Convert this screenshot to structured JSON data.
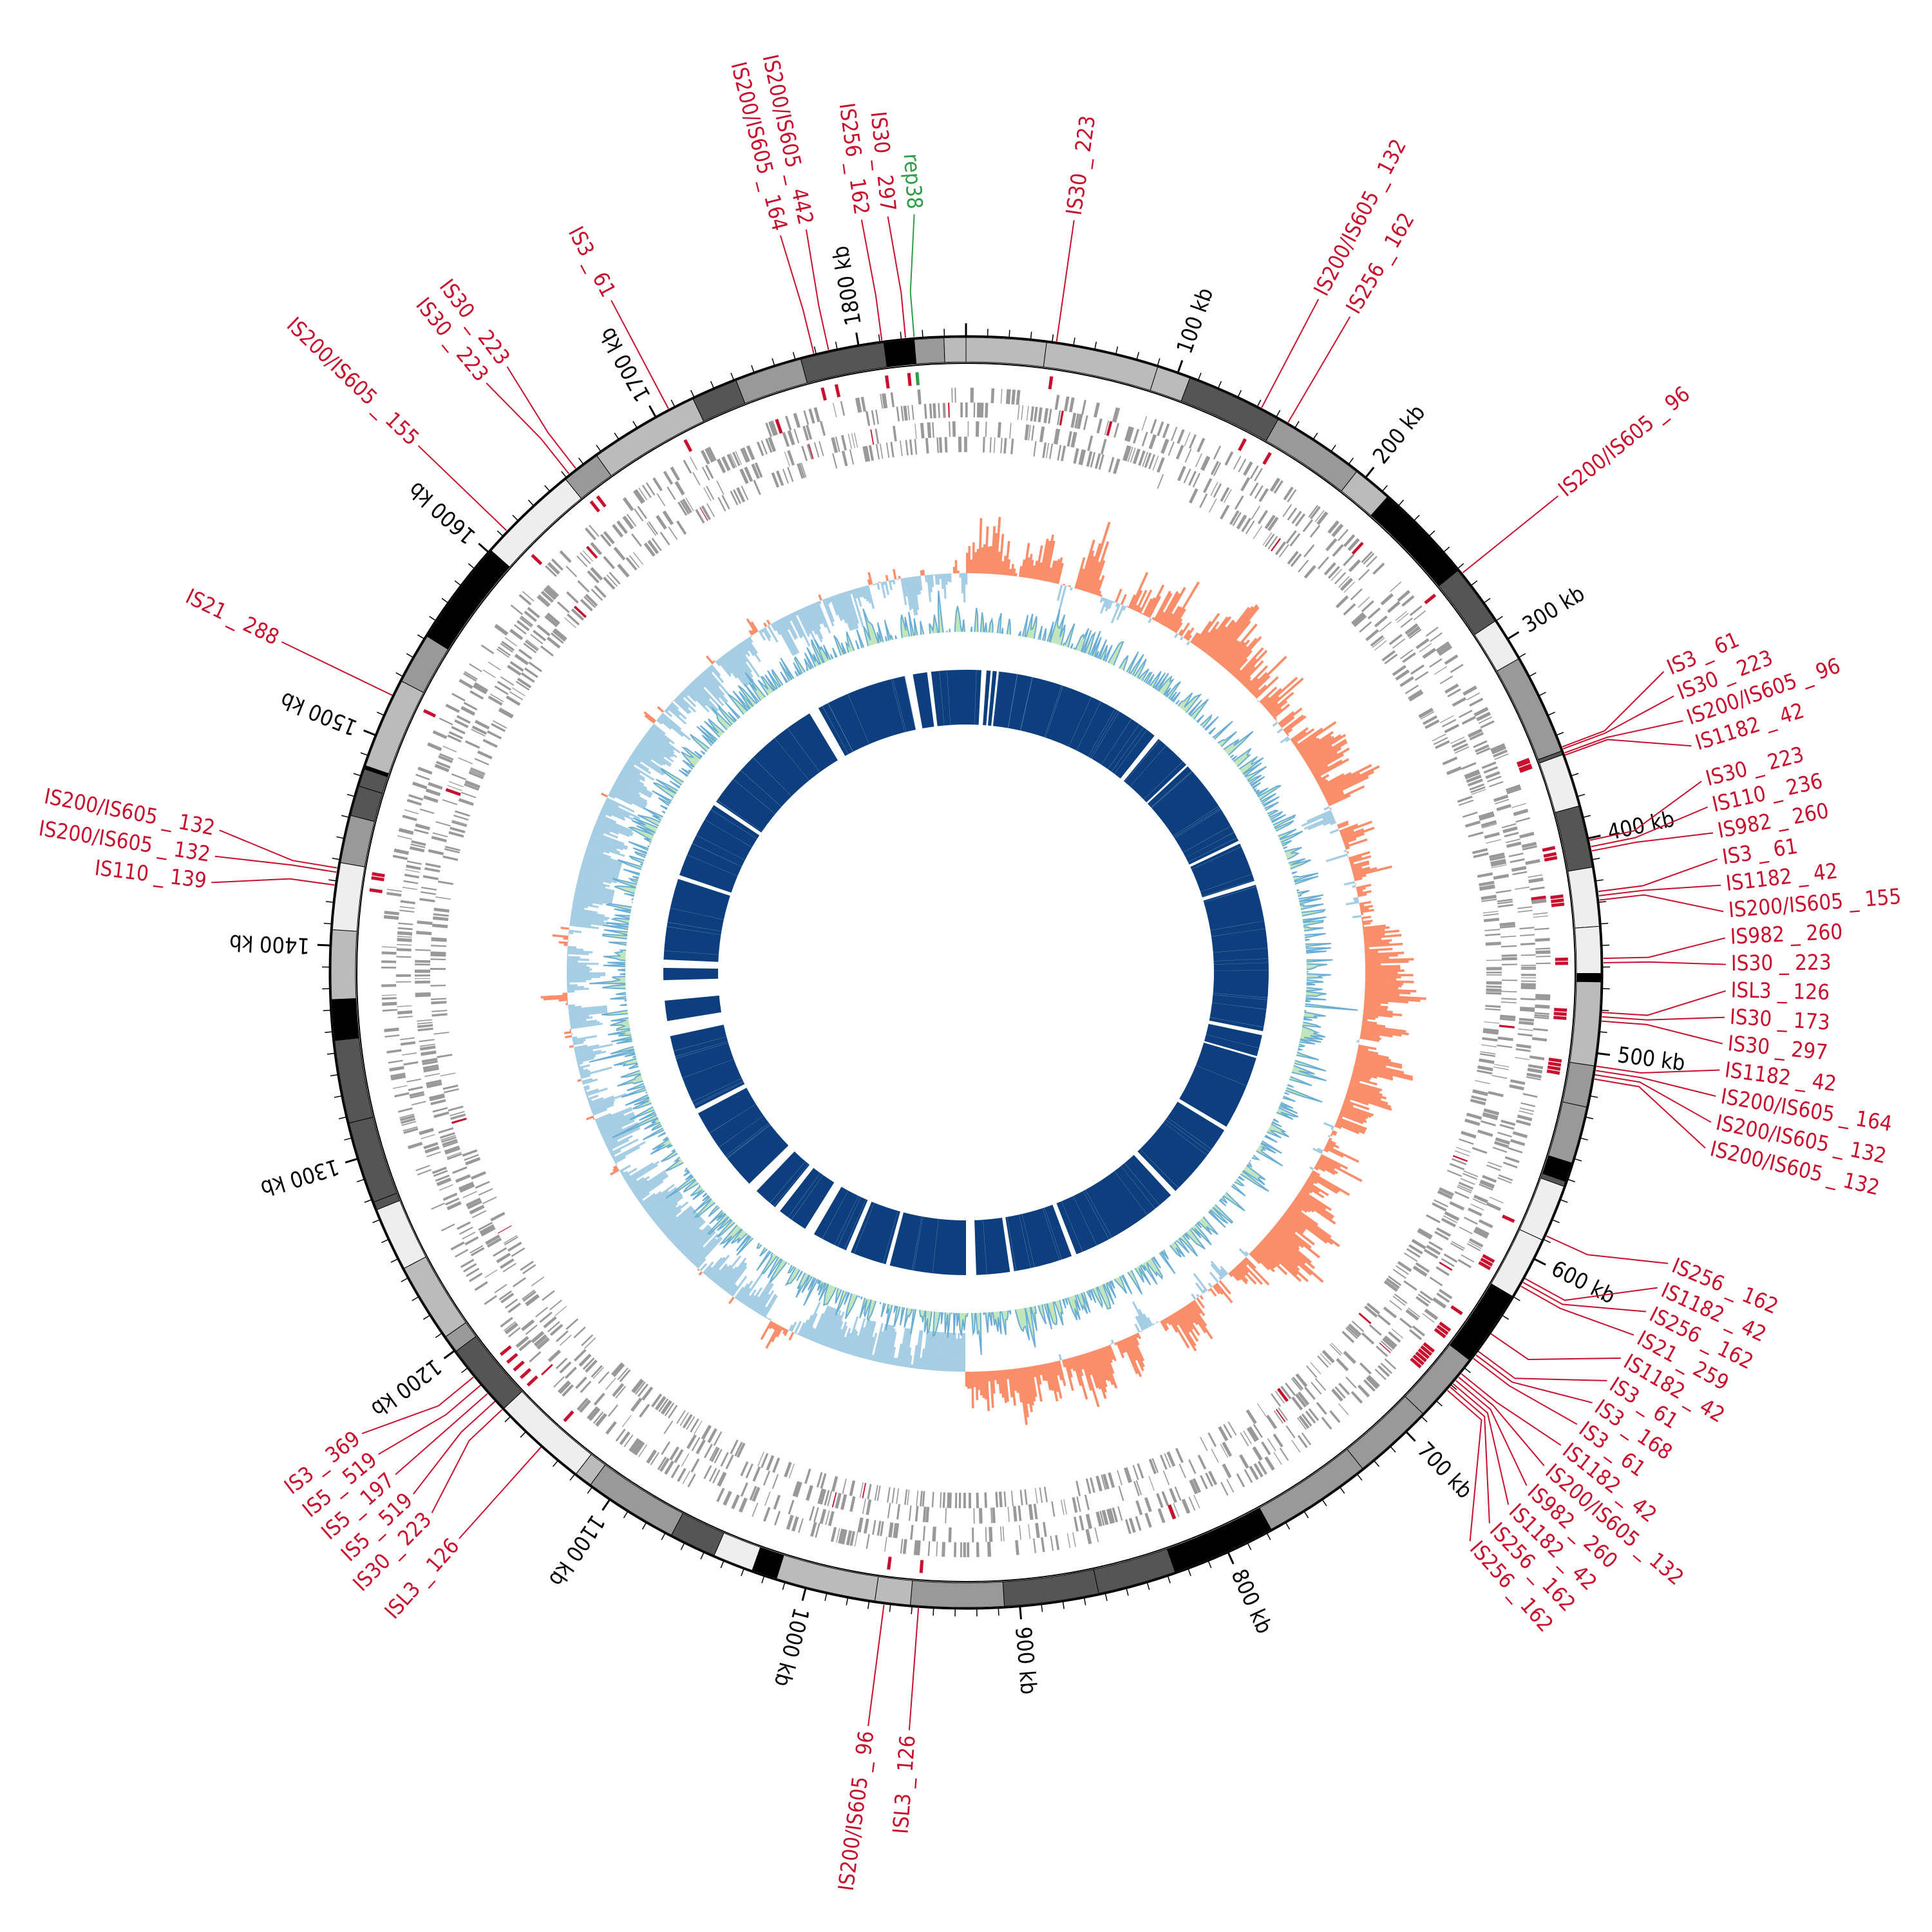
{
  "genome_length_kb": 1850,
  "colors": {
    "is_element": "#c8102e",
    "rep_element": "#2e9e48",
    "gene_tracks": "#999999",
    "gc_skew_positive": "#fa8e6b",
    "gc_skew_negative": "#a5cde4",
    "gc_content_positive": "#8ecf85",
    "gc_content_negative": "#6aaed6",
    "blast_homology": "#0d3f7f",
    "contig_shades": [
      "#000000",
      "#555555",
      "#999999",
      "#bbbbbb",
      "#eeeeee"
    ]
  },
  "scale_labels": [
    {
      "kb": 100,
      "text": "100 kb"
    },
    {
      "kb": 200,
      "text": "200 kb"
    },
    {
      "kb": 300,
      "text": "300 kb"
    },
    {
      "kb": 400,
      "text": "400 kb"
    },
    {
      "kb": 500,
      "text": "500 kb"
    },
    {
      "kb": 600,
      "text": "600 kb"
    },
    {
      "kb": 700,
      "text": "700 kb"
    },
    {
      "kb": 800,
      "text": "800 kb"
    },
    {
      "kb": 900,
      "text": "900 kb"
    },
    {
      "kb": 1000,
      "text": "1000 kb"
    },
    {
      "kb": 1100,
      "text": "1100 kb"
    },
    {
      "kb": 1200,
      "text": "1200 kb"
    },
    {
      "kb": 1300,
      "text": "1300 kb"
    },
    {
      "kb": 1400,
      "text": "1400 kb"
    },
    {
      "kb": 1500,
      "text": "1500 kb"
    },
    {
      "kb": 1600,
      "text": "1600 kb"
    },
    {
      "kb": 1700,
      "text": "1700 kb"
    },
    {
      "kb": 1800,
      "text": "1800 kb"
    }
  ],
  "mobile_elements": [
    {
      "kb": 1779,
      "text": "IS200/IS605 _ 164"
    },
    {
      "kb": 1786,
      "text": "IS200/IS605 _ 442"
    },
    {
      "kb": 1811,
      "text": "IS256 _ 162"
    },
    {
      "kb": 1822,
      "text": "IS30 _ 297"
    },
    {
      "kb": 1826,
      "text": "rep38",
      "kind": "rep"
    },
    {
      "kb": 42,
      "text": "IS30 _ 223"
    },
    {
      "kb": 142,
      "text": "IS200/IS605 _ 132"
    },
    {
      "kb": 156,
      "text": "IS256 _ 162"
    },
    {
      "kb": 263,
      "text": "IS200/IS605 _ 96"
    },
    {
      "kb": 356,
      "text": "IS3 _ 61"
    },
    {
      "kb": 357,
      "text": "IS30 _ 223"
    },
    {
      "kb": 359,
      "text": "IS200/IS605 _ 96"
    },
    {
      "kb": 360,
      "text": "IS1182 _ 42"
    },
    {
      "kb": 401,
      "text": "IS30 _ 223"
    },
    {
      "kb": 404,
      "text": "IS110 _ 236"
    },
    {
      "kb": 406,
      "text": "IS982 _ 260"
    },
    {
      "kb": 425,
      "text": "IS3 _ 61"
    },
    {
      "kb": 427,
      "text": "IS1182 _ 42"
    },
    {
      "kb": 429,
      "text": "IS200/IS605 _ 155"
    },
    {
      "kb": 456,
      "text": "IS982 _ 260"
    },
    {
      "kb": 458,
      "text": "IS30 _ 223"
    },
    {
      "kb": 481,
      "text": "ISL3 _ 126"
    },
    {
      "kb": 483,
      "text": "IS30 _ 173"
    },
    {
      "kb": 485,
      "text": "IS30 _ 297"
    },
    {
      "kb": 506,
      "text": "IS1182 _ 42"
    },
    {
      "kb": 508,
      "text": "IS200/IS605 _ 164"
    },
    {
      "kb": 510,
      "text": "IS200/IS605 _ 132"
    },
    {
      "kb": 512,
      "text": "IS200/IS605 _ 132"
    },
    {
      "kb": 588,
      "text": "IS256 _ 162"
    },
    {
      "kb": 610,
      "text": "IS1182 _ 42"
    },
    {
      "kb": 612,
      "text": "IS256 _ 162"
    },
    {
      "kb": 614,
      "text": "IS21 _ 259"
    },
    {
      "kb": 640,
      "text": "IS1182 _ 42"
    },
    {
      "kb": 650,
      "text": "IS3 _ 61"
    },
    {
      "kb": 652,
      "text": "IS3 _ 168"
    },
    {
      "kb": 654,
      "text": "IS3 _ 61"
    },
    {
      "kb": 663,
      "text": "IS1182 _ 42"
    },
    {
      "kb": 665,
      "text": "IS200/IS605 _ 132"
    },
    {
      "kb": 667,
      "text": "IS982 _ 260"
    },
    {
      "kb": 669,
      "text": "IS1182 _ 42"
    },
    {
      "kb": 671,
      "text": "IS256 _ 162"
    },
    {
      "kb": 673,
      "text": "IS256 _ 162"
    },
    {
      "kb": 963,
      "text": "IS200/IS605 _ 96"
    },
    {
      "kb": 947,
      "text": "ISL3 _ 126"
    },
    {
      "kb": 1140,
      "text": "ISL3 _ 126"
    },
    {
      "kb": 1165,
      "text": "IS30 _ 223"
    },
    {
      "kb": 1170,
      "text": "IS5 _ 519"
    },
    {
      "kb": 1175,
      "text": "IS5 _ 197"
    },
    {
      "kb": 1180,
      "text": "IS5 _ 519"
    },
    {
      "kb": 1185,
      "text": "IS3 _ 369"
    },
    {
      "kb": 1428,
      "text": "IS110 _ 139"
    },
    {
      "kb": 1434,
      "text": "IS200/IS605 _ 132"
    },
    {
      "kb": 1436,
      "text": "IS200/IS605 _ 132"
    },
    {
      "kb": 1520,
      "text": "IS21 _ 288"
    },
    {
      "kb": 1613,
      "text": "IS200/IS605 _ 155"
    },
    {
      "kb": 1652,
      "text": "IS30 _ 223"
    },
    {
      "kb": 1656,
      "text": "IS30 _ 223"
    },
    {
      "kb": 1707,
      "text": "IS3 _ 61"
    }
  ]
}
